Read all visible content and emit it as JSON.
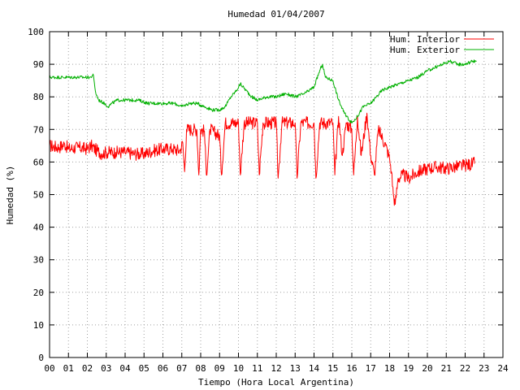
{
  "chart_data": {
    "type": "line",
    "title": "Humedad 01/04/2007",
    "xlabel": "Tiempo (Hora Local Argentina)",
    "ylabel": "Humedad (%)",
    "xlim": [
      0,
      24
    ],
    "ylim": [
      0,
      100
    ],
    "x_ticks": [
      "00",
      "01",
      "02",
      "03",
      "04",
      "05",
      "06",
      "07",
      "08",
      "09",
      "10",
      "11",
      "12",
      "13",
      "14",
      "15",
      "16",
      "17",
      "18",
      "19",
      "20",
      "21",
      "22",
      "23",
      "24"
    ],
    "y_ticks": [
      "0",
      "10",
      "20",
      "30",
      "40",
      "50",
      "60",
      "70",
      "80",
      "90",
      "100"
    ],
    "grid": true,
    "legend_position": "top-right",
    "series": [
      {
        "name": "Hum. Interior",
        "color": "#ff0000",
        "noise": 2,
        "points": [
          [
            0.0,
            65
          ],
          [
            0.5,
            64.5
          ],
          [
            0.8,
            65.5
          ],
          [
            1.0,
            64
          ],
          [
            1.5,
            64.5
          ],
          [
            2.0,
            64
          ],
          [
            2.2,
            65
          ],
          [
            2.5,
            63.5
          ],
          [
            2.8,
            62.5
          ],
          [
            3.0,
            63
          ],
          [
            3.5,
            63
          ],
          [
            4.0,
            63
          ],
          [
            4.5,
            62.5
          ],
          [
            5.0,
            62.5
          ],
          [
            5.5,
            63.5
          ],
          [
            6.0,
            64
          ],
          [
            6.5,
            64
          ],
          [
            6.9,
            63.5
          ],
          [
            7.05,
            66
          ],
          [
            7.15,
            57
          ],
          [
            7.25,
            70
          ],
          [
            7.8,
            70
          ],
          [
            7.9,
            56
          ],
          [
            8.0,
            70
          ],
          [
            8.2,
            69.5
          ],
          [
            8.3,
            56
          ],
          [
            8.5,
            70
          ],
          [
            9.0,
            68
          ],
          [
            9.1,
            56
          ],
          [
            9.3,
            72
          ],
          [
            10.0,
            72
          ],
          [
            10.1,
            56
          ],
          [
            10.3,
            72
          ],
          [
            11.0,
            72
          ],
          [
            11.1,
            56
          ],
          [
            11.3,
            72
          ],
          [
            12.0,
            72
          ],
          [
            12.1,
            55
          ],
          [
            12.3,
            72
          ],
          [
            13.0,
            72
          ],
          [
            13.1,
            55
          ],
          [
            13.3,
            72
          ],
          [
            14.0,
            72
          ],
          [
            14.1,
            55
          ],
          [
            14.3,
            72
          ],
          [
            15.0,
            72
          ],
          [
            15.1,
            56
          ],
          [
            15.3,
            74
          ],
          [
            15.5,
            62
          ],
          [
            15.7,
            72
          ],
          [
            16.0,
            70
          ],
          [
            16.1,
            56
          ],
          [
            16.3,
            74
          ],
          [
            16.5,
            62
          ],
          [
            16.8,
            75
          ],
          [
            17.0,
            62
          ],
          [
            17.2,
            56
          ],
          [
            17.4,
            70
          ],
          [
            17.8,
            65
          ],
          [
            18.0,
            61
          ],
          [
            18.1,
            57
          ],
          [
            18.2,
            50
          ],
          [
            18.3,
            47
          ],
          [
            18.45,
            55
          ],
          [
            18.7,
            56
          ],
          [
            19.0,
            55
          ],
          [
            19.5,
            57
          ],
          [
            20.0,
            58
          ],
          [
            20.5,
            58.5
          ],
          [
            21.0,
            58
          ],
          [
            21.5,
            58.5
          ],
          [
            22.0,
            59
          ],
          [
            22.5,
            59.5
          ]
        ]
      },
      {
        "name": "Hum. Exterior",
        "color": "#00b000",
        "noise": 0.5,
        "points": [
          [
            0.0,
            86
          ],
          [
            2.2,
            86
          ],
          [
            2.3,
            87
          ],
          [
            2.45,
            81
          ],
          [
            2.6,
            79
          ],
          [
            2.9,
            78
          ],
          [
            3.1,
            77
          ],
          [
            3.3,
            78
          ],
          [
            3.6,
            79
          ],
          [
            4.3,
            79
          ],
          [
            4.7,
            79
          ],
          [
            5.2,
            78
          ],
          [
            6.0,
            78
          ],
          [
            6.6,
            78
          ],
          [
            7.0,
            77
          ],
          [
            7.4,
            78
          ],
          [
            7.8,
            78
          ],
          [
            8.2,
            77
          ],
          [
            8.6,
            76
          ],
          [
            9.0,
            76
          ],
          [
            9.3,
            77
          ],
          [
            9.6,
            80
          ],
          [
            9.9,
            82
          ],
          [
            10.1,
            84
          ],
          [
            10.4,
            82
          ],
          [
            10.7,
            80
          ],
          [
            11.0,
            79
          ],
          [
            11.5,
            80
          ],
          [
            12.0,
            80
          ],
          [
            12.5,
            81
          ],
          [
            13.0,
            80
          ],
          [
            13.5,
            81
          ],
          [
            14.0,
            83
          ],
          [
            14.3,
            88
          ],
          [
            14.45,
            90
          ],
          [
            14.6,
            86
          ],
          [
            15.0,
            85
          ],
          [
            15.3,
            79
          ],
          [
            15.6,
            75
          ],
          [
            16.0,
            72
          ],
          [
            16.3,
            74
          ],
          [
            16.6,
            77
          ],
          [
            17.0,
            78
          ],
          [
            17.3,
            80
          ],
          [
            17.6,
            82
          ],
          [
            18.0,
            83
          ],
          [
            18.5,
            84
          ],
          [
            19.0,
            85
          ],
          [
            19.5,
            86
          ],
          [
            20.0,
            88
          ],
          [
            20.4,
            89
          ],
          [
            20.8,
            90
          ],
          [
            21.2,
            91
          ],
          [
            21.6,
            90
          ],
          [
            22.0,
            90
          ],
          [
            22.4,
            91
          ],
          [
            22.6,
            91
          ]
        ]
      }
    ]
  }
}
